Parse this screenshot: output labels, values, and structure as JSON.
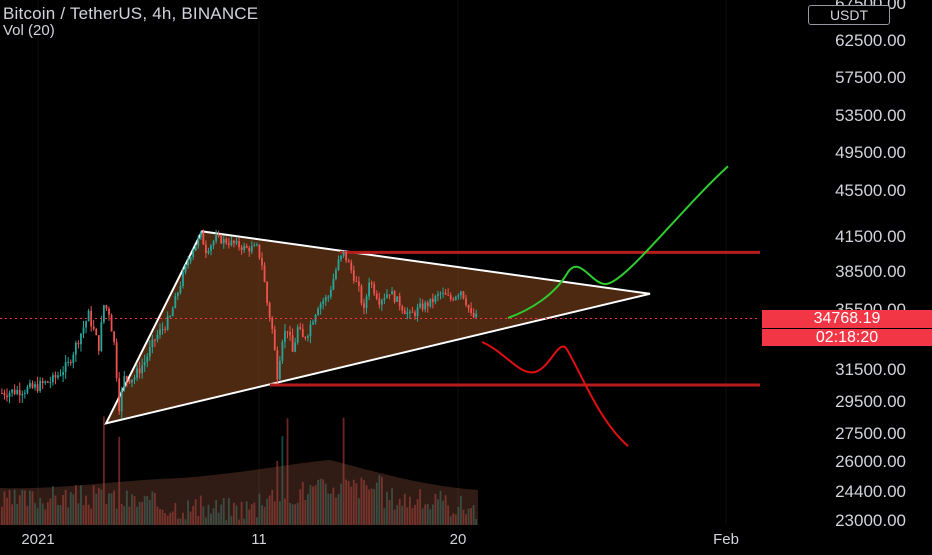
{
  "header": {
    "title": "Bitcoin / TetherUS, 4h, BINANCE",
    "volume_label": "Vol (20)"
  },
  "currency_label": "USDT",
  "current_price": "34768.19",
  "countdown": "02:18:20",
  "colors": {
    "background": "#000000",
    "up_candle": "#26a69a",
    "down_candle": "#ef5350",
    "triangle_fill": "#8a4a1e",
    "triangle_edge": "#ffffff",
    "support_resistance": "#b71c1c",
    "bull_path": "#2ecc2e",
    "bear_path": "#e01010",
    "price_tag": "#f23645",
    "axis_text": "#d1d4dc"
  },
  "chart_data": {
    "type": "candlestick",
    "x_axis_ticks": [
      "2021",
      "11",
      "20",
      "Feb"
    ],
    "y_axis_ticks": [
      "67500.00",
      "62500.00",
      "57500.00",
      "53500.00",
      "49500.00",
      "45500.00",
      "41500.00",
      "38500.00",
      "35500.00",
      "31500.00",
      "29500.00",
      "27500.00",
      "26000.00",
      "24400.00",
      "23000.00"
    ],
    "y_ticks_numeric": [
      67500,
      62500,
      57500,
      53500,
      49500,
      45500,
      41500,
      38500,
      35500,
      31500,
      29500,
      27500,
      26000,
      24400,
      23000
    ],
    "scale": "log",
    "last_price": 34768.19,
    "price_range_approx": {
      "low": 28100,
      "high": 41900
    },
    "drawings": {
      "triangle": {
        "vertices_price": [
          28100,
          41900,
          36700
        ],
        "vertices_date": [
          "Jan 4",
          "Jan 8",
          "Jan 26"
        ]
      },
      "horizontal_levels": [
        40100,
        30500
      ],
      "bullish_projection_target": 48000,
      "bearish_projection_target": 26800
    },
    "volume_indicator": "Vol (20)"
  }
}
